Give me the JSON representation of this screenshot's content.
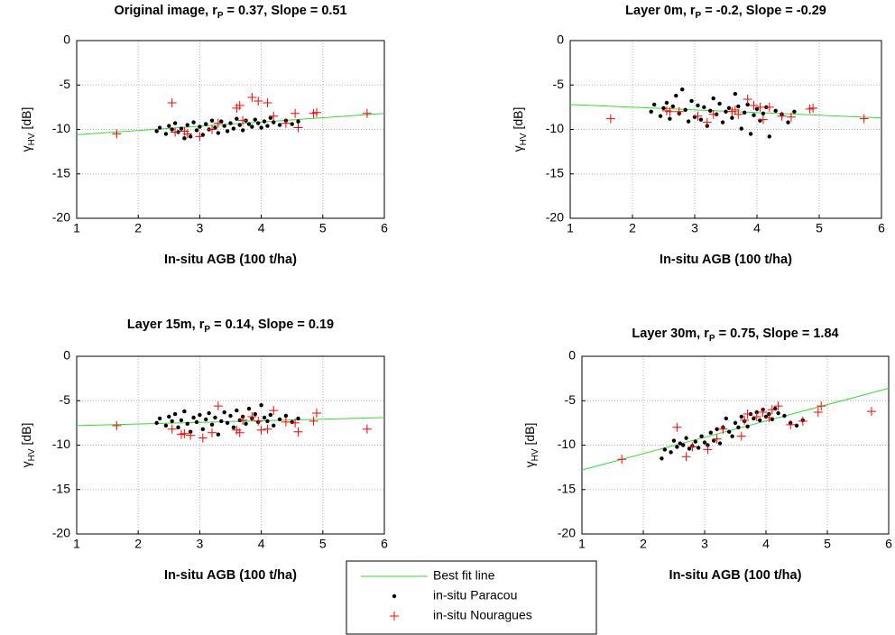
{
  "chart_data": [
    {
      "type": "scatter",
      "title": [
        "Original image, r",
        "P",
        " = 0.37, Slope = 0.51"
      ],
      "x_label": "In-situ AGB (100 t/ha)",
      "y_label": [
        "γ",
        "HV",
        " [dB]"
      ],
      "xlim": [
        1,
        6
      ],
      "ylim": [
        -20,
        0
      ],
      "xticks": [
        1,
        2,
        3,
        4,
        5,
        6
      ],
      "yticks": [
        -20,
        -15,
        -10,
        -5,
        0
      ],
      "grid": true,
      "series": [
        {
          "name": "Best fit line",
          "type": "line",
          "color": "#33dd33",
          "x": [
            1,
            6
          ],
          "values": [
            -10.6,
            -8.2
          ]
        },
        {
          "name": "in-situ Paracou",
          "type": "dot",
          "color": "#000000",
          "x": [
            2.3,
            2.35,
            2.45,
            2.5,
            2.55,
            2.6,
            2.65,
            2.7,
            2.75,
            2.8,
            2.85,
            2.9,
            2.95,
            3.0,
            3.05,
            3.1,
            3.15,
            3.2,
            3.25,
            3.3,
            3.35,
            3.4,
            3.45,
            3.5,
            3.55,
            3.6,
            3.65,
            3.7,
            3.75,
            3.8,
            3.85,
            3.9,
            3.95,
            4.0,
            4.05,
            4.1,
            4.15,
            4.2,
            4.3,
            4.4,
            4.5,
            4.6
          ],
          "values": [
            -10.2,
            -9.8,
            -10.5,
            -9.6,
            -10.0,
            -9.3,
            -10.3,
            -9.9,
            -11.0,
            -9.5,
            -10.8,
            -9.2,
            -10.1,
            -9.7,
            -10.6,
            -9.4,
            -10.0,
            -9.0,
            -9.8,
            -10.4,
            -9.1,
            -9.6,
            -10.2,
            -9.3,
            -9.9,
            -8.8,
            -9.5,
            -10.1,
            -9.0,
            -9.4,
            -9.7,
            -8.9,
            -9.3,
            -9.8,
            -9.1,
            -9.6,
            -8.7,
            -9.2,
            -9.5,
            -9.0,
            -9.4,
            -9.1
          ]
        },
        {
          "name": "in-situ Nouragues",
          "type": "plus",
          "color": "#ff0000",
          "x": [
            1.65,
            2.55,
            2.6,
            2.75,
            2.8,
            3.0,
            3.2,
            3.3,
            3.6,
            3.65,
            3.7,
            3.85,
            3.95,
            4.1,
            4.2,
            4.4,
            4.55,
            4.6,
            4.85,
            4.9,
            5.72
          ],
          "values": [
            -10.5,
            -7.0,
            -10.3,
            -10.2,
            -10.5,
            -10.8,
            -10.0,
            -9.3,
            -7.6,
            -7.3,
            -9.0,
            -6.4,
            -6.8,
            -7.0,
            -8.5,
            -9.3,
            -8.2,
            -9.8,
            -8.2,
            -8.1,
            -8.2
          ]
        }
      ]
    },
    {
      "type": "scatter",
      "title": [
        "Layer 0m, r",
        "P",
        " = -0.2, Slope = -0.29"
      ],
      "x_label": "In-situ AGB (100 t/ha)",
      "y_label": [
        "γ",
        "HV",
        " [dB]"
      ],
      "xlim": [
        1,
        6
      ],
      "ylim": [
        -20,
        0
      ],
      "xticks": [
        1,
        2,
        3,
        4,
        5,
        6
      ],
      "yticks": [
        -20,
        -15,
        -10,
        -5,
        0
      ],
      "grid": true,
      "series": [
        {
          "type": "line",
          "color": "#33dd33",
          "x": [
            1,
            6
          ],
          "values": [
            -7.2,
            -8.7
          ]
        },
        {
          "type": "dot",
          "color": "#000000",
          "x": [
            2.3,
            2.35,
            2.45,
            2.5,
            2.55,
            2.6,
            2.65,
            2.7,
            2.75,
            2.8,
            2.85,
            2.9,
            2.95,
            3.0,
            3.05,
            3.1,
            3.15,
            3.2,
            3.25,
            3.3,
            3.35,
            3.4,
            3.45,
            3.5,
            3.55,
            3.6,
            3.65,
            3.7,
            3.75,
            3.8,
            3.85,
            3.9,
            3.95,
            4.0,
            4.05,
            4.1,
            4.15,
            4.2,
            4.3,
            4.4,
            4.5,
            4.6
          ],
          "values": [
            -8.0,
            -7.2,
            -8.5,
            -7.6,
            -7.0,
            -8.8,
            -7.4,
            -6.2,
            -8.2,
            -5.5,
            -7.8,
            -9.1,
            -6.8,
            -8.6,
            -7.3,
            -8.9,
            -7.5,
            -9.6,
            -7.9,
            -6.5,
            -8.3,
            -7.1,
            -9.2,
            -8.0,
            -7.6,
            -8.7,
            -6.0,
            -7.4,
            -9.9,
            -8.1,
            -7.2,
            -10.5,
            -8.4,
            -7.7,
            -9.0,
            -8.2,
            -7.5,
            -10.8,
            -7.9,
            -8.3,
            -9.2,
            -8.0
          ]
        },
        {
          "type": "plus",
          "color": "#ff0000",
          "x": [
            1.65,
            2.55,
            2.6,
            2.75,
            3.05,
            3.2,
            3.3,
            3.6,
            3.65,
            3.7,
            3.85,
            3.95,
            4.05,
            4.1,
            4.2,
            4.4,
            4.55,
            4.85,
            4.9,
            5.72
          ],
          "values": [
            -8.8,
            -7.9,
            -8.0,
            -8.0,
            -8.5,
            -9.2,
            -8.3,
            -8.0,
            -7.8,
            -8.3,
            -6.6,
            -7.3,
            -7.5,
            -8.9,
            -7.5,
            -8.5,
            -8.6,
            -7.7,
            -7.6,
            -8.8
          ]
        }
      ]
    },
    {
      "type": "scatter",
      "title": [
        "Layer 15m, r",
        "P",
        " = 0.14, Slope = 0.19"
      ],
      "x_label": "In-situ AGB (100 t/ha)",
      "y_label": [
        "γ",
        "HV",
        " [dB]"
      ],
      "xlim": [
        1,
        6
      ],
      "ylim": [
        -20,
        0
      ],
      "xticks": [
        1,
        2,
        3,
        4,
        5,
        6
      ],
      "yticks": [
        -20,
        -15,
        -10,
        -5,
        0
      ],
      "grid": true,
      "series": [
        {
          "type": "line",
          "color": "#33dd33",
          "x": [
            1,
            6
          ],
          "values": [
            -7.8,
            -6.9
          ]
        },
        {
          "type": "dot",
          "color": "#000000",
          "x": [
            2.3,
            2.35,
            2.45,
            2.5,
            2.55,
            2.6,
            2.65,
            2.7,
            2.75,
            2.8,
            2.85,
            2.9,
            2.95,
            3.0,
            3.05,
            3.1,
            3.15,
            3.2,
            3.25,
            3.3,
            3.35,
            3.4,
            3.45,
            3.5,
            3.55,
            3.6,
            3.65,
            3.7,
            3.75,
            3.8,
            3.85,
            3.9,
            3.95,
            4.0,
            4.05,
            4.1,
            4.15,
            4.2,
            4.3,
            4.4,
            4.5,
            4.6
          ],
          "values": [
            -7.5,
            -7.0,
            -7.8,
            -6.8,
            -7.3,
            -6.5,
            -8.0,
            -7.2,
            -6.2,
            -7.6,
            -8.5,
            -6.9,
            -7.4,
            -6.6,
            -8.2,
            -7.1,
            -6.4,
            -7.7,
            -6.9,
            -8.8,
            -7.3,
            -6.3,
            -7.5,
            -6.7,
            -8.0,
            -6.1,
            -7.2,
            -6.8,
            -7.6,
            -5.9,
            -7.0,
            -6.5,
            -7.4,
            -5.5,
            -6.9,
            -7.3,
            -6.6,
            -7.8,
            -7.1,
            -6.7,
            -7.4,
            -7.0
          ]
        },
        {
          "type": "plus",
          "color": "#ff0000",
          "x": [
            1.65,
            2.55,
            2.7,
            2.75,
            2.85,
            3.05,
            3.2,
            3.3,
            3.6,
            3.65,
            3.7,
            3.85,
            3.95,
            4.0,
            4.1,
            4.2,
            4.4,
            4.55,
            4.6,
            4.85,
            4.9,
            5.72
          ],
          "values": [
            -7.8,
            -8.2,
            -8.8,
            -8.7,
            -8.9,
            -9.2,
            -8.6,
            -5.6,
            -8.3,
            -8.6,
            -7.2,
            -6.8,
            -7.3,
            -8.3,
            -8.2,
            -6.1,
            -7.4,
            -7.5,
            -8.5,
            -7.3,
            -6.4,
            -8.2
          ]
        }
      ]
    },
    {
      "type": "scatter",
      "title": [
        "Layer 30m, r",
        "P",
        " = 0.75, Slope = 1.84"
      ],
      "x_label": "In-situ AGB (100 t/ha)",
      "y_label": [
        "γ",
        "HV",
        " [dB]"
      ],
      "xlim": [
        1,
        6
      ],
      "ylim": [
        -20,
        0
      ],
      "xticks": [
        1,
        2,
        3,
        4,
        5,
        6
      ],
      "yticks": [
        -20,
        -15,
        -10,
        -5,
        0
      ],
      "grid": true,
      "series": [
        {
          "type": "line",
          "color": "#33dd33",
          "x": [
            1,
            6
          ],
          "values": [
            -12.8,
            -3.6
          ]
        },
        {
          "type": "dot",
          "color": "#000000",
          "x": [
            2.3,
            2.35,
            2.45,
            2.5,
            2.55,
            2.6,
            2.65,
            2.7,
            2.75,
            2.8,
            2.85,
            2.9,
            2.95,
            3.0,
            3.05,
            3.1,
            3.15,
            3.2,
            3.25,
            3.3,
            3.35,
            3.4,
            3.45,
            3.5,
            3.55,
            3.6,
            3.65,
            3.7,
            3.75,
            3.8,
            3.85,
            3.9,
            3.95,
            4.0,
            4.05,
            4.1,
            4.15,
            4.2,
            4.3,
            4.4,
            4.5,
            4.6
          ],
          "values": [
            -11.5,
            -10.5,
            -10.8,
            -9.5,
            -10.2,
            -9.8,
            -10.0,
            -9.2,
            -10.4,
            -10.1,
            -9.6,
            -10.3,
            -9.0,
            -9.7,
            -10.0,
            -8.6,
            -9.5,
            -8.2,
            -9.8,
            -8.0,
            -7.0,
            -8.5,
            -9.0,
            -7.5,
            -8.0,
            -6.8,
            -7.3,
            -7.9,
            -6.5,
            -7.0,
            -6.3,
            -7.2,
            -6.0,
            -6.8,
            -6.5,
            -7.1,
            -5.9,
            -6.4,
            -6.7,
            -7.5,
            -7.8,
            -7.2
          ]
        },
        {
          "type": "plus",
          "color": "#ff0000",
          "x": [
            1.65,
            2.55,
            2.7,
            2.8,
            3.05,
            3.2,
            3.3,
            3.6,
            3.65,
            3.7,
            3.85,
            3.95,
            4.05,
            4.1,
            4.2,
            4.4,
            4.6,
            4.85,
            4.9,
            5.72
          ],
          "values": [
            -11.6,
            -8.0,
            -11.3,
            -10.2,
            -10.5,
            -9.3,
            -8.2,
            -9.0,
            -7.2,
            -6.5,
            -6.8,
            -6.3,
            -6.9,
            -6.0,
            -5.6,
            -7.7,
            -7.3,
            -6.3,
            -5.6,
            -6.2
          ]
        }
      ]
    }
  ]
}
